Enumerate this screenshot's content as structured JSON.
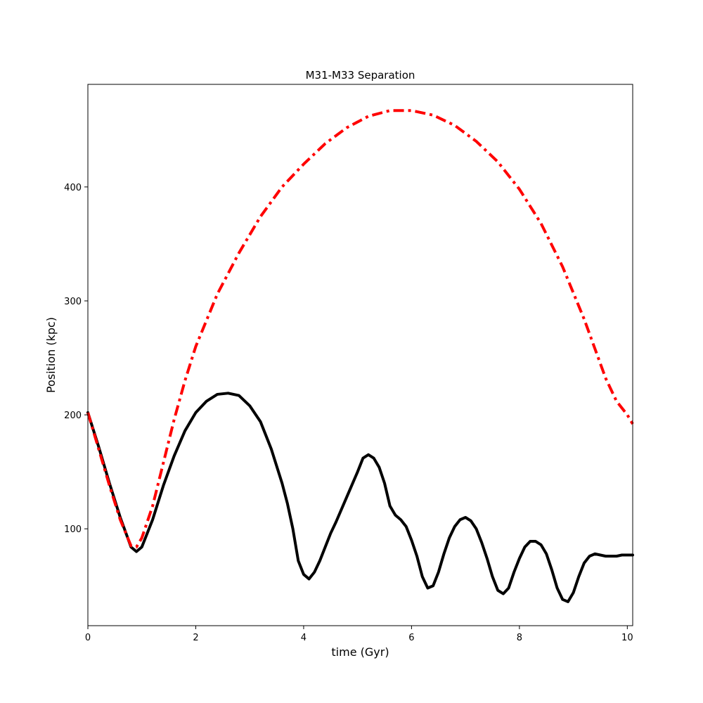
{
  "chart_data": {
    "type": "line",
    "title": "M31-M33 Separation",
    "xlabel": "time (Gyr)",
    "ylabel": "Position (kpc)",
    "xlim": [
      0,
      10.1
    ],
    "ylim": [
      15,
      490
    ],
    "xticks": [
      0,
      2,
      4,
      6,
      8,
      10
    ],
    "yticks": [
      100,
      200,
      300,
      400
    ],
    "grid": false,
    "legend": "none",
    "series": [
      {
        "color": "#000000",
        "style": "solid",
        "x": [
          0,
          0.2,
          0.4,
          0.6,
          0.8,
          0.9,
          1.0,
          1.2,
          1.4,
          1.6,
          1.8,
          2.0,
          2.2,
          2.4,
          2.6,
          2.8,
          3.0,
          3.2,
          3.4,
          3.6,
          3.7,
          3.8,
          3.9,
          4.0,
          4.1,
          4.2,
          4.3,
          4.4,
          4.5,
          4.6,
          4.8,
          5.0,
          5.1,
          5.2,
          5.3,
          5.4,
          5.5,
          5.6,
          5.7,
          5.8,
          5.9,
          6.0,
          6.1,
          6.2,
          6.3,
          6.4,
          6.5,
          6.6,
          6.7,
          6.8,
          6.9,
          7.0,
          7.1,
          7.2,
          7.3,
          7.4,
          7.5,
          7.6,
          7.7,
          7.8,
          7.9,
          8.0,
          8.1,
          8.2,
          8.3,
          8.4,
          8.5,
          8.6,
          8.7,
          8.8,
          8.9,
          9.0,
          9.1,
          9.2,
          9.3,
          9.4,
          9.5,
          9.6,
          9.7,
          9.8,
          9.9,
          10.0,
          10.1
        ],
        "y": [
          202,
          172,
          140,
          110,
          84,
          80,
          84,
          108,
          138,
          164,
          186,
          202,
          212,
          218,
          219,
          217,
          208,
          194,
          170,
          140,
          122,
          100,
          72,
          60,
          56,
          62,
          72,
          84,
          96,
          106,
          128,
          150,
          162,
          165,
          162,
          154,
          140,
          120,
          112,
          108,
          102,
          90,
          76,
          58,
          48,
          50,
          62,
          78,
          92,
          102,
          108,
          110,
          107,
          100,
          88,
          74,
          58,
          46,
          43,
          48,
          62,
          74,
          84,
          89,
          89,
          86,
          78,
          64,
          48,
          38,
          36,
          44,
          58,
          70,
          76,
          78,
          77,
          76,
          76,
          76,
          77,
          77,
          77
        ]
      },
      {
        "color": "#ff0000",
        "style": "dashdot",
        "x": [
          0,
          0.2,
          0.4,
          0.6,
          0.8,
          0.9,
          1.0,
          1.2,
          1.4,
          1.6,
          1.8,
          2.0,
          2.4,
          2.8,
          3.2,
          3.6,
          4.0,
          4.4,
          4.8,
          5.2,
          5.6,
          6.0,
          6.4,
          6.8,
          7.2,
          7.6,
          8.0,
          8.4,
          8.8,
          9.2,
          9.6,
          9.8,
          10.0,
          10.1
        ],
        "y": [
          202,
          170,
          138,
          108,
          85,
          84,
          92,
          120,
          158,
          196,
          230,
          260,
          306,
          342,
          374,
          400,
          420,
          438,
          452,
          462,
          467,
          467,
          463,
          454,
          440,
          422,
          398,
          368,
          330,
          284,
          232,
          212,
          200,
          192
        ]
      }
    ]
  }
}
